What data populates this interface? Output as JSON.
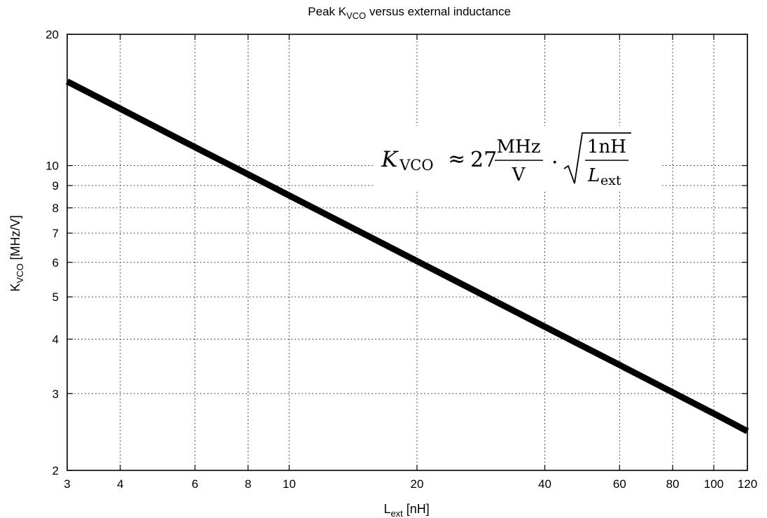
{
  "chart_data": {
    "type": "line",
    "title": {
      "prefix": "Peak K",
      "sub": "VCO",
      "suffix": " versus external inductance"
    },
    "xlabel": {
      "main": "L",
      "sub": "ext",
      "suffix": " [nH]"
    },
    "ylabel": {
      "main": "K",
      "sub": "VCO",
      "suffix": " [MHz/V]"
    },
    "x_scale": "log",
    "y_scale": "log",
    "xlim": [
      3,
      120
    ],
    "ylim": [
      2,
      20
    ],
    "x_ticks": [
      3,
      4,
      6,
      8,
      10,
      20,
      40,
      60,
      80,
      100,
      120
    ],
    "x_tick_labels": [
      "3",
      "4",
      "6",
      "8",
      "10",
      "20",
      "40",
      "60",
      "80",
      "100",
      "120"
    ],
    "y_ticks": [
      2,
      3,
      4,
      5,
      6,
      7,
      8,
      9,
      10,
      20
    ],
    "y_tick_labels": [
      "2",
      "3",
      "4",
      "5",
      "6",
      "7",
      "8",
      "9",
      "10",
      "20"
    ],
    "grid": true,
    "legend": "none",
    "series": [
      {
        "x": [
          3,
          4,
          6,
          8,
          10,
          20,
          40,
          60,
          80,
          100,
          120
        ],
        "y": [
          15.59,
          13.5,
          11.02,
          9.55,
          8.54,
          6.04,
          4.27,
          3.49,
          3.02,
          2.7,
          2.46
        ]
      }
    ],
    "annotation": {
      "k": "K",
      "k_sub": "VCO",
      "approx": "≈",
      "coef": "27",
      "frac1_num": "MHz",
      "frac1_den": "V",
      "dot": "·",
      "frac2_num": "1nH",
      "frac2_den": "L",
      "frac2_den_sub": "ext"
    }
  }
}
